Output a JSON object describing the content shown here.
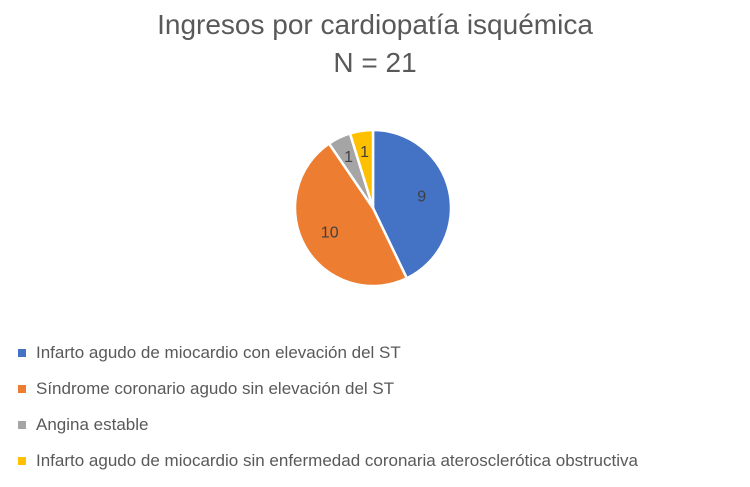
{
  "chart_data": {
    "type": "pie",
    "title": "Ingresos por cardiopatía isquémica",
    "subtitle": "N = 21",
    "legend_position": "bottom",
    "slices": [
      {
        "label": "Infarto agudo de miocardio con elevación del ST",
        "value": 9,
        "color": "#4472C4",
        "data_label": "9"
      },
      {
        "label": "Síndrome coronario agudo sin elevación del ST",
        "value": 10,
        "color": "#ED7D31",
        "data_label": "10"
      },
      {
        "label": "Angina estable",
        "value": 1,
        "color": "#A5A5A5",
        "data_label": "1"
      },
      {
        "label": "Infarto agudo de miocardio sin enfermedad coronaria aterosclerótica obstructiva",
        "value": 1,
        "color": "#FFC000",
        "data_label": "1"
      }
    ]
  }
}
